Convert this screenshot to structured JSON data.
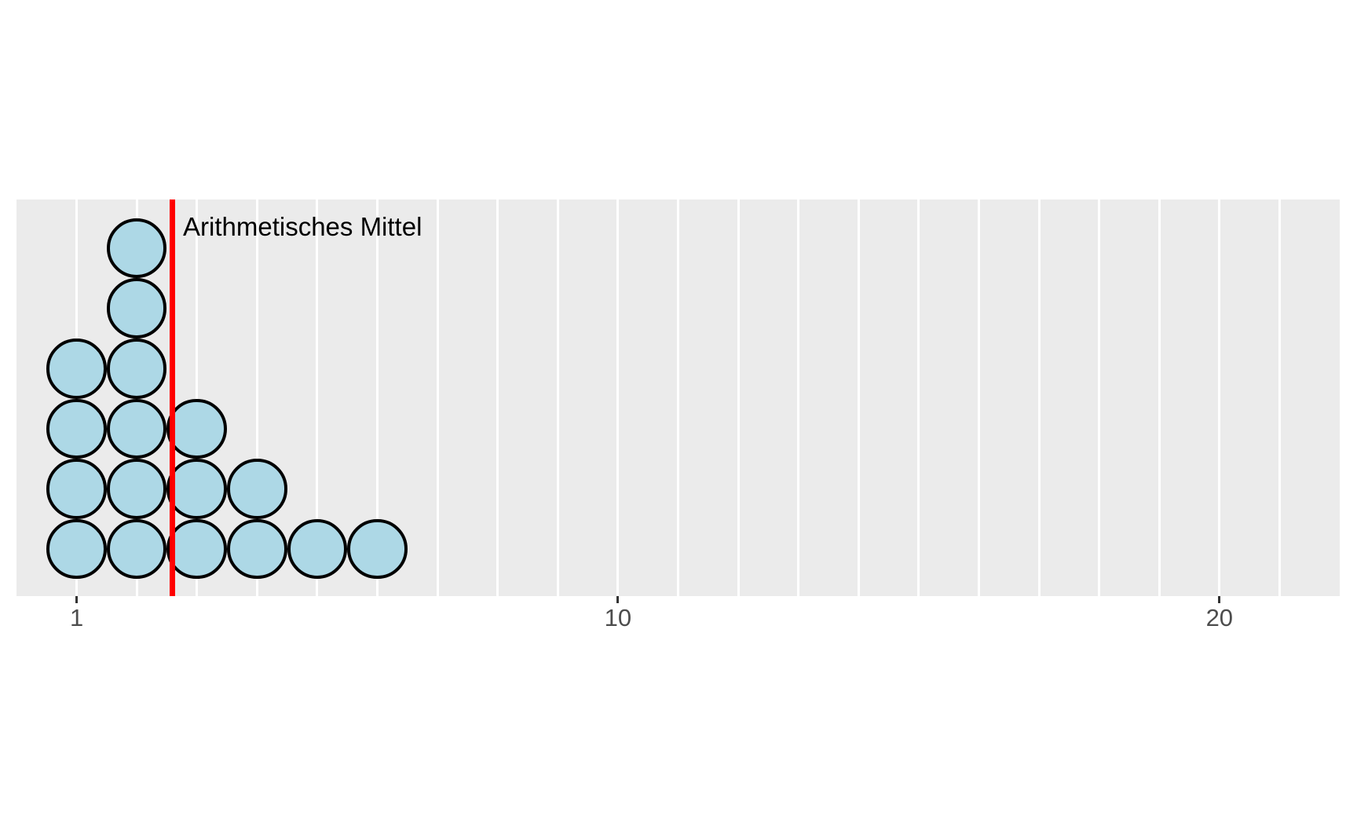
{
  "chart_data": {
    "type": "scatter",
    "subtype": "stacked_dotplot",
    "description": "Stacked dot plot of 17 observations with a vertical line marking the arithmetic mean",
    "title": "",
    "xlabel": "",
    "ylabel": "",
    "values": [
      1,
      1,
      1,
      1,
      2,
      2,
      2,
      2,
      2,
      2,
      3,
      3,
      3,
      4,
      4,
      5,
      6
    ],
    "stacks": [
      {
        "x": 1,
        "count": 4
      },
      {
        "x": 2,
        "count": 6
      },
      {
        "x": 3,
        "count": 3
      },
      {
        "x": 4,
        "count": 2
      },
      {
        "x": 5,
        "count": 1
      },
      {
        "x": 6,
        "count": 1
      }
    ],
    "n": 17,
    "mean_line": {
      "value": 2.588,
      "label": "Arithmetisches Mittel"
    },
    "axis_x": {
      "lim": [
        0,
        22
      ],
      "ticks": [
        1,
        10,
        20
      ],
      "tick_labels": [
        "1",
        "10",
        "20"
      ],
      "gridline_step": 1
    },
    "legend": "none",
    "grid": "vertical white gridlines on gray panel"
  },
  "style": {
    "page_bg": "#FFFFFF",
    "panel_bg": "#EBEBEB",
    "gridline_color": "#FFFFFF",
    "dot_fill": "#ADD8E6",
    "dot_stroke": "#000000",
    "mean_line_color": "#FF0000",
    "tick_color": "#333333",
    "tick_label_color": "#4D4D4D",
    "annotation_color": "#000000"
  }
}
